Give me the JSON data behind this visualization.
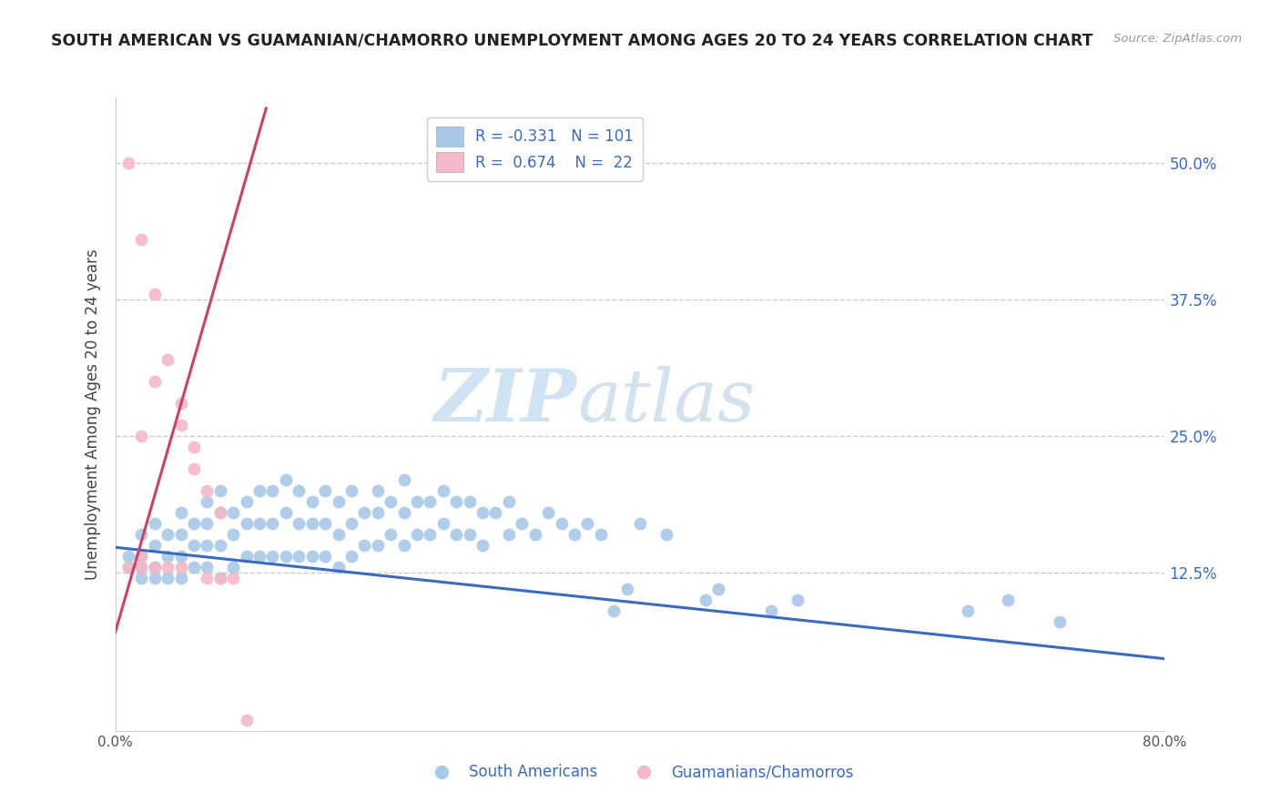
{
  "title": "SOUTH AMERICAN VS GUAMANIAN/CHAMORRO UNEMPLOYMENT AMONG AGES 20 TO 24 YEARS CORRELATION CHART",
  "source": "Source: ZipAtlas.com",
  "ylabel": "Unemployment Among Ages 20 to 24 years",
  "xlim": [
    0.0,
    0.8
  ],
  "ylim": [
    -0.02,
    0.56
  ],
  "ytick_positions": [
    0.125,
    0.25,
    0.375,
    0.5
  ],
  "ytick_labels": [
    "12.5%",
    "25.0%",
    "37.5%",
    "50.0%"
  ],
  "blue_color": "#a8c8e8",
  "pink_color": "#f4b8c8",
  "blue_line_color": "#3a6bbf",
  "pink_line_color": "#d04060",
  "R_blue": -0.331,
  "N_blue": 101,
  "R_pink": 0.674,
  "N_pink": 22,
  "legend_label_blue": "South Americans",
  "legend_label_pink": "Guamanians/Chamorros",
  "watermark_ZIP": "ZIP",
  "watermark_atlas": "atlas",
  "background_color": "#ffffff",
  "grid_color": "#cccccc",
  "blue_scatter_x": [
    0.01,
    0.01,
    0.02,
    0.02,
    0.02,
    0.02,
    0.03,
    0.03,
    0.03,
    0.03,
    0.04,
    0.04,
    0.04,
    0.05,
    0.05,
    0.05,
    0.05,
    0.06,
    0.06,
    0.06,
    0.07,
    0.07,
    0.07,
    0.07,
    0.08,
    0.08,
    0.08,
    0.08,
    0.09,
    0.09,
    0.09,
    0.1,
    0.1,
    0.1,
    0.11,
    0.11,
    0.11,
    0.12,
    0.12,
    0.12,
    0.13,
    0.13,
    0.13,
    0.14,
    0.14,
    0.14,
    0.15,
    0.15,
    0.15,
    0.16,
    0.16,
    0.16,
    0.17,
    0.17,
    0.17,
    0.18,
    0.18,
    0.18,
    0.19,
    0.19,
    0.2,
    0.2,
    0.2,
    0.21,
    0.21,
    0.22,
    0.22,
    0.22,
    0.23,
    0.23,
    0.24,
    0.24,
    0.25,
    0.25,
    0.26,
    0.26,
    0.27,
    0.27,
    0.28,
    0.28,
    0.29,
    0.3,
    0.3,
    0.31,
    0.32,
    0.33,
    0.34,
    0.35,
    0.36,
    0.37,
    0.38,
    0.39,
    0.4,
    0.42,
    0.45,
    0.46,
    0.5,
    0.52,
    0.65,
    0.68,
    0.72
  ],
  "blue_scatter_y": [
    0.14,
    0.13,
    0.16,
    0.14,
    0.13,
    0.12,
    0.17,
    0.15,
    0.13,
    0.12,
    0.16,
    0.14,
    0.12,
    0.18,
    0.16,
    0.14,
    0.12,
    0.17,
    0.15,
    0.13,
    0.19,
    0.17,
    0.15,
    0.13,
    0.2,
    0.18,
    0.15,
    0.12,
    0.18,
    0.16,
    0.13,
    0.19,
    0.17,
    0.14,
    0.2,
    0.17,
    0.14,
    0.2,
    0.17,
    0.14,
    0.21,
    0.18,
    0.14,
    0.2,
    0.17,
    0.14,
    0.19,
    0.17,
    0.14,
    0.2,
    0.17,
    0.14,
    0.19,
    0.16,
    0.13,
    0.2,
    0.17,
    0.14,
    0.18,
    0.15,
    0.2,
    0.18,
    0.15,
    0.19,
    0.16,
    0.21,
    0.18,
    0.15,
    0.19,
    0.16,
    0.19,
    0.16,
    0.2,
    0.17,
    0.19,
    0.16,
    0.19,
    0.16,
    0.18,
    0.15,
    0.18,
    0.19,
    0.16,
    0.17,
    0.16,
    0.18,
    0.17,
    0.16,
    0.17,
    0.16,
    0.09,
    0.11,
    0.17,
    0.16,
    0.1,
    0.11,
    0.09,
    0.1,
    0.09,
    0.1,
    0.08
  ],
  "pink_scatter_x": [
    0.01,
    0.01,
    0.02,
    0.02,
    0.02,
    0.02,
    0.03,
    0.03,
    0.03,
    0.04,
    0.04,
    0.05,
    0.05,
    0.05,
    0.06,
    0.06,
    0.07,
    0.07,
    0.08,
    0.08,
    0.09,
    0.1
  ],
  "pink_scatter_y": [
    0.5,
    0.13,
    0.43,
    0.25,
    0.14,
    0.13,
    0.38,
    0.3,
    0.13,
    0.32,
    0.13,
    0.28,
    0.26,
    0.13,
    0.24,
    0.22,
    0.2,
    0.12,
    0.18,
    0.12,
    0.12,
    -0.01
  ],
  "blue_trend_x": [
    0.0,
    0.8
  ],
  "blue_trend_y": [
    0.148,
    0.046
  ],
  "pink_trend_x": [
    0.0,
    0.115
  ],
  "pink_trend_y": [
    0.07,
    0.55
  ]
}
